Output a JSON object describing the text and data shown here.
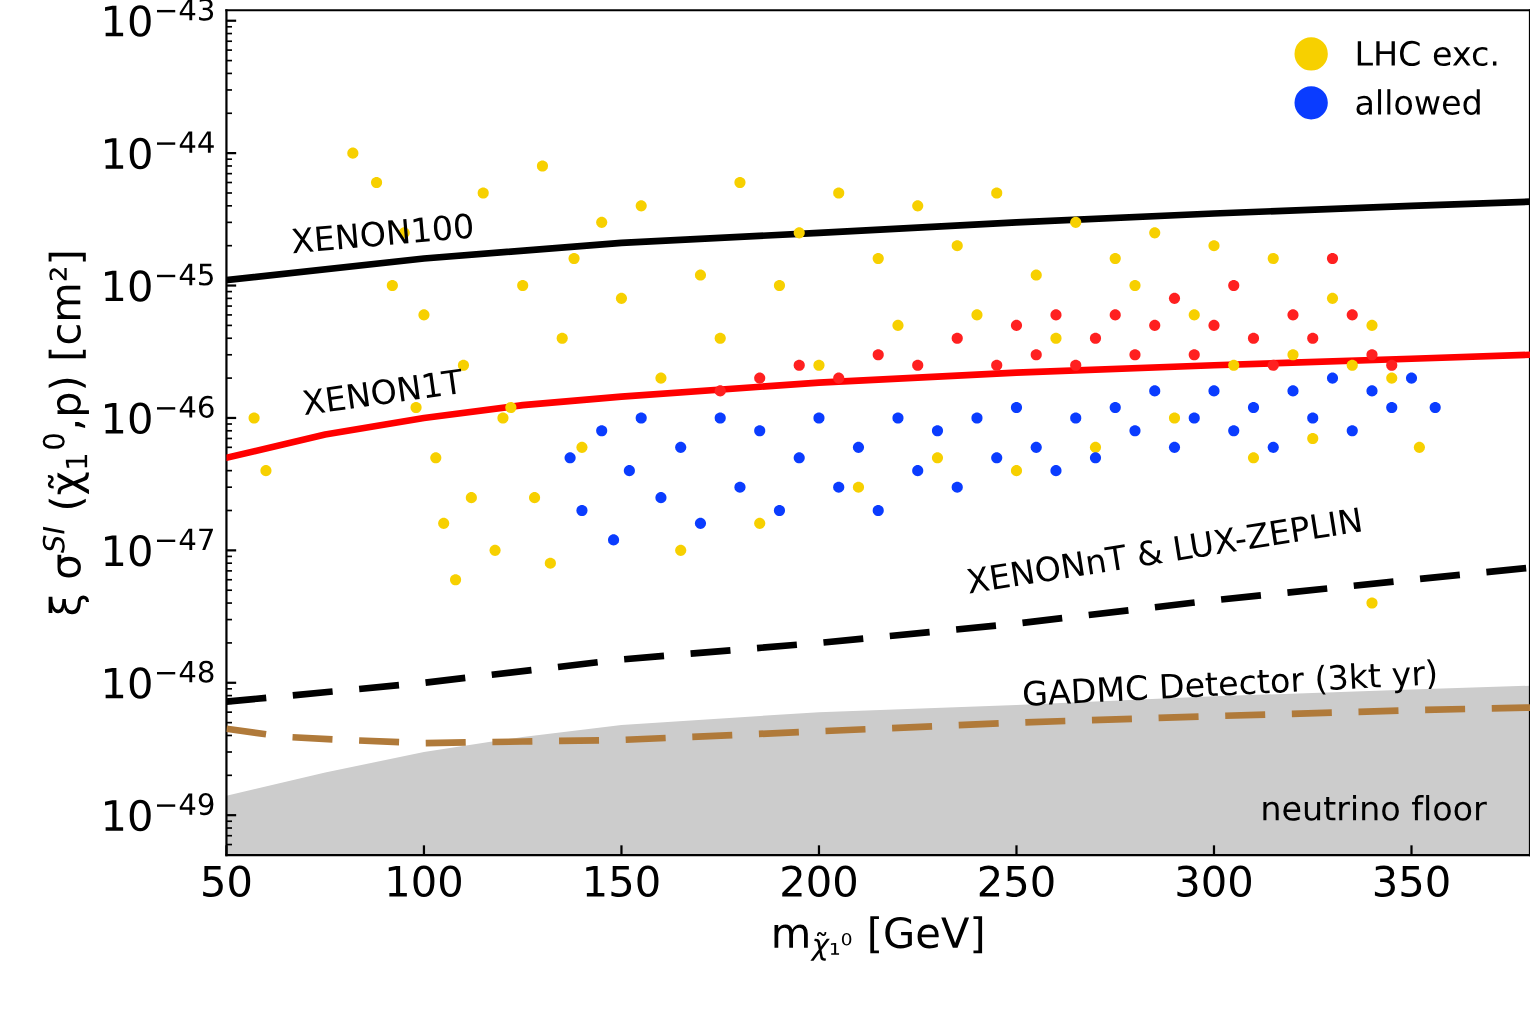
{
  "chart_data": {
    "type": "scatter",
    "xlabel": "m$_{χ̃₁⁰}$ [GeV]",
    "ylabel": "ξ σ$^{SI}$ (χ̃$_{1}$$^{0}$,p) [cm²]",
    "log": "y",
    "xlim": [
      50,
      380
    ],
    "ylim": [
      5e-50,
      1.2e-43
    ],
    "xticks": [
      50,
      100,
      150,
      200,
      250,
      300,
      350
    ],
    "yticks": [
      {
        "value": 1e-49,
        "label": "10$^{−49}$"
      },
      {
        "value": 1e-48,
        "label": "10$^{−48}$"
      },
      {
        "value": 1e-47,
        "label": "10$^{−47}$"
      },
      {
        "value": 1e-46,
        "label": "10$^{−46}$"
      },
      {
        "value": 1e-45,
        "label": "10$^{−45}$"
      },
      {
        "value": 1e-44,
        "label": "10$^{−44}$"
      },
      {
        "value": 1e-43,
        "label": "10$^{−43}$"
      }
    ],
    "grid": false,
    "legend": "top right",
    "series": [
      {
        "type": "area",
        "name": "neutrino floor",
        "color": "#cccccc",
        "x": [
          50,
          75,
          100,
          125,
          150,
          200,
          250,
          300,
          350,
          380
        ],
        "values": [
          1.4e-49,
          2.1e-49,
          3e-49,
          3.9e-49,
          4.8e-49,
          6e-49,
          6.8e-49,
          7.9e-49,
          8.9e-49,
          9.5e-49
        ]
      },
      {
        "name": "LHC exc.",
        "marker": "circle",
        "color": "#f7d000",
        "x": [
          82,
          88,
          95,
          100,
          103,
          105,
          108,
          110,
          115,
          118,
          120,
          125,
          128,
          130,
          132,
          135,
          140,
          145,
          150,
          155,
          160,
          165,
          170,
          175,
          180,
          185,
          190,
          195,
          200,
          205,
          210,
          215,
          220,
          225,
          230,
          235,
          240,
          245,
          250,
          255,
          260,
          265,
          270,
          275,
          280,
          285,
          290,
          295,
          300,
          305,
          310,
          315,
          320,
          325,
          330,
          335,
          340,
          345,
          352,
          57,
          60,
          340,
          112,
          122,
          138,
          98,
          92
        ],
        "values": [
          1e-44,
          6e-45,
          2.5e-45,
          6e-46,
          5e-47,
          1.6e-47,
          6e-48,
          2.5e-46,
          5e-45,
          1e-47,
          1e-46,
          1e-45,
          2.5e-47,
          8e-45,
          8e-48,
          4e-46,
          6e-47,
          3e-45,
          8e-46,
          4e-45,
          2e-46,
          1e-47,
          1.2e-45,
          4e-46,
          6e-45,
          1.6e-47,
          1e-45,
          2.5e-45,
          2.5e-46,
          5e-45,
          3e-47,
          1.6e-45,
          5e-46,
          4e-45,
          5e-47,
          2e-45,
          6e-46,
          5e-45,
          4e-47,
          1.2e-45,
          4e-46,
          3e-45,
          6e-47,
          1.6e-45,
          1e-45,
          2.5e-45,
          1e-46,
          6e-46,
          2e-45,
          2.5e-46,
          5e-47,
          1.6e-45,
          3e-46,
          7e-47,
          8e-46,
          2.5e-46,
          5e-46,
          2e-46,
          6e-47,
          1e-46,
          4e-47,
          4e-48,
          2.5e-47,
          1.2e-46,
          1.6e-45,
          1.2e-46,
          1e-45
        ]
      },
      {
        "marker": "circle",
        "color": "#ff2020",
        "x": [
          175,
          185,
          195,
          205,
          215,
          225,
          235,
          245,
          250,
          255,
          260,
          265,
          270,
          275,
          280,
          285,
          290,
          295,
          300,
          305,
          310,
          315,
          320,
          325,
          330,
          335,
          340,
          345
        ],
        "values": [
          1.6e-46,
          2e-46,
          2.5e-46,
          2e-46,
          3e-46,
          2.5e-46,
          4e-46,
          2.5e-46,
          5e-46,
          3e-46,
          6e-46,
          2.5e-46,
          4e-46,
          6e-46,
          3e-46,
          5e-46,
          8e-46,
          3e-46,
          5e-46,
          1e-45,
          4e-46,
          2.5e-46,
          6e-46,
          4e-46,
          1.6e-45,
          6e-46,
          3e-46,
          2.5e-46
        ]
      },
      {
        "name": "allowed",
        "marker": "circle",
        "color": "#0a3cff",
        "x": [
          137,
          140,
          145,
          148,
          152,
          155,
          160,
          165,
          170,
          175,
          180,
          185,
          190,
          195,
          200,
          205,
          210,
          215,
          220,
          225,
          230,
          235,
          240,
          245,
          250,
          255,
          260,
          265,
          270,
          275,
          280,
          285,
          290,
          295,
          300,
          305,
          310,
          315,
          320,
          325,
          330,
          335,
          340,
          345,
          350,
          356
        ],
        "values": [
          5e-47,
          2e-47,
          8e-47,
          1.2e-47,
          4e-47,
          1e-46,
          2.5e-47,
          6e-47,
          1.6e-47,
          1e-46,
          3e-47,
          8e-47,
          2e-47,
          5e-47,
          1e-46,
          3e-47,
          6e-47,
          2e-47,
          1e-46,
          4e-47,
          8e-47,
          3e-47,
          1e-46,
          5e-47,
          1.2e-46,
          6e-47,
          4e-47,
          1e-46,
          5e-47,
          1.2e-46,
          8e-47,
          1.6e-46,
          6e-47,
          1e-46,
          1.6e-46,
          8e-47,
          1.2e-46,
          6e-47,
          1.6e-46,
          1e-46,
          2e-46,
          8e-47,
          1.6e-46,
          1.2e-46,
          2e-46,
          1.2e-46
        ]
      },
      {
        "type": "line",
        "name": "XENON100",
        "color": "#000000",
        "line_style": "solid",
        "x": [
          50,
          100,
          150,
          200,
          250,
          300,
          350,
          380
        ],
        "values": [
          1.1e-45,
          1.6e-45,
          2.1e-45,
          2.5e-45,
          3e-45,
          3.5e-45,
          4e-45,
          4.3e-45
        ]
      },
      {
        "type": "line",
        "name": "XENON1T",
        "color": "#ff0000",
        "line_style": "solid",
        "x": [
          50,
          75,
          100,
          125,
          150,
          200,
          250,
          300,
          350,
          380
        ],
        "values": [
          5e-47,
          7.5e-47,
          1e-46,
          1.25e-46,
          1.45e-46,
          1.85e-46,
          2.2e-46,
          2.5e-46,
          2.8e-46,
          3e-46
        ]
      },
      {
        "type": "line",
        "name": "XENONnT & LUX-ZEPLIN",
        "color": "#000000",
        "line_style": "dashed",
        "x": [
          50,
          100,
          150,
          200,
          250,
          300,
          350,
          380
        ],
        "values": [
          7.2e-49,
          1e-48,
          1.5e-48,
          2e-48,
          2.8e-48,
          4.2e-48,
          6e-48,
          7.4e-48
        ]
      },
      {
        "type": "line",
        "name": "GADMC Detector (3kt yr)",
        "color": "#b07a3a",
        "line_style": "dashed",
        "x": [
          50,
          65,
          80,
          100,
          125,
          150,
          200,
          250,
          300,
          350,
          380
        ],
        "values": [
          4.5e-49,
          3.9e-49,
          3.7e-49,
          3.5e-49,
          3.6e-49,
          3.7e-49,
          4.3e-49,
          5e-49,
          5.6e-49,
          6.2e-49,
          6.5e-49
        ]
      }
    ]
  }
}
